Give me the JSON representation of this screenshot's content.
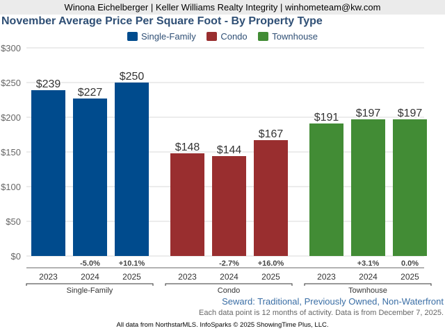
{
  "header": {
    "agent_line": "Winona Eichelberger | Keller Williams Realty Integrity | winhometeam@kw.com"
  },
  "chart_data": {
    "type": "bar",
    "title": "November Average Price Per Square Foot - By Property Type",
    "xlabel": "",
    "ylabel": "",
    "ylim": [
      0,
      300
    ],
    "yticks": [
      0,
      50,
      100,
      150,
      200,
      250,
      300
    ],
    "ytick_labels": [
      "$0",
      "$50",
      "$100",
      "$150",
      "$200",
      "$250",
      "$300"
    ],
    "grid": true,
    "legend_position": "top-center",
    "legend": [
      {
        "name": "Single-Family",
        "color": "#004b8d"
      },
      {
        "name": "Condo",
        "color": "#992e2f"
      },
      {
        "name": "Townhouse",
        "color": "#428c35"
      }
    ],
    "groups": [
      {
        "name": "Single-Family",
        "color": "#004b8d",
        "categories": [
          "2023",
          "2024",
          "2025"
        ],
        "values": [
          239,
          227,
          250
        ],
        "value_labels": [
          "$239",
          "$227",
          "$250"
        ],
        "changes": [
          "",
          "-5.0%",
          "+10.1%"
        ]
      },
      {
        "name": "Condo",
        "color": "#992e2f",
        "categories": [
          "2023",
          "2024",
          "2025"
        ],
        "values": [
          148,
          144,
          167
        ],
        "value_labels": [
          "$148",
          "$144",
          "$167"
        ],
        "changes": [
          "",
          "-2.7%",
          "+16.0%"
        ]
      },
      {
        "name": "Townhouse",
        "color": "#428c35",
        "categories": [
          "2023",
          "2024",
          "2025"
        ],
        "values": [
          191,
          197,
          197
        ],
        "value_labels": [
          "$191",
          "$197",
          "$197"
        ],
        "changes": [
          "",
          "+3.1%",
          "0.0%"
        ]
      }
    ]
  },
  "subtitle": "Seward: Traditional, Previously Owned, Non-Waterfront",
  "note": "Each data point is 12 months of activity. Data is from December 7, 2025.",
  "footer": "All data from NorthstarMLS. InfoSparks © 2025 ShowingTime Plus, LLC."
}
